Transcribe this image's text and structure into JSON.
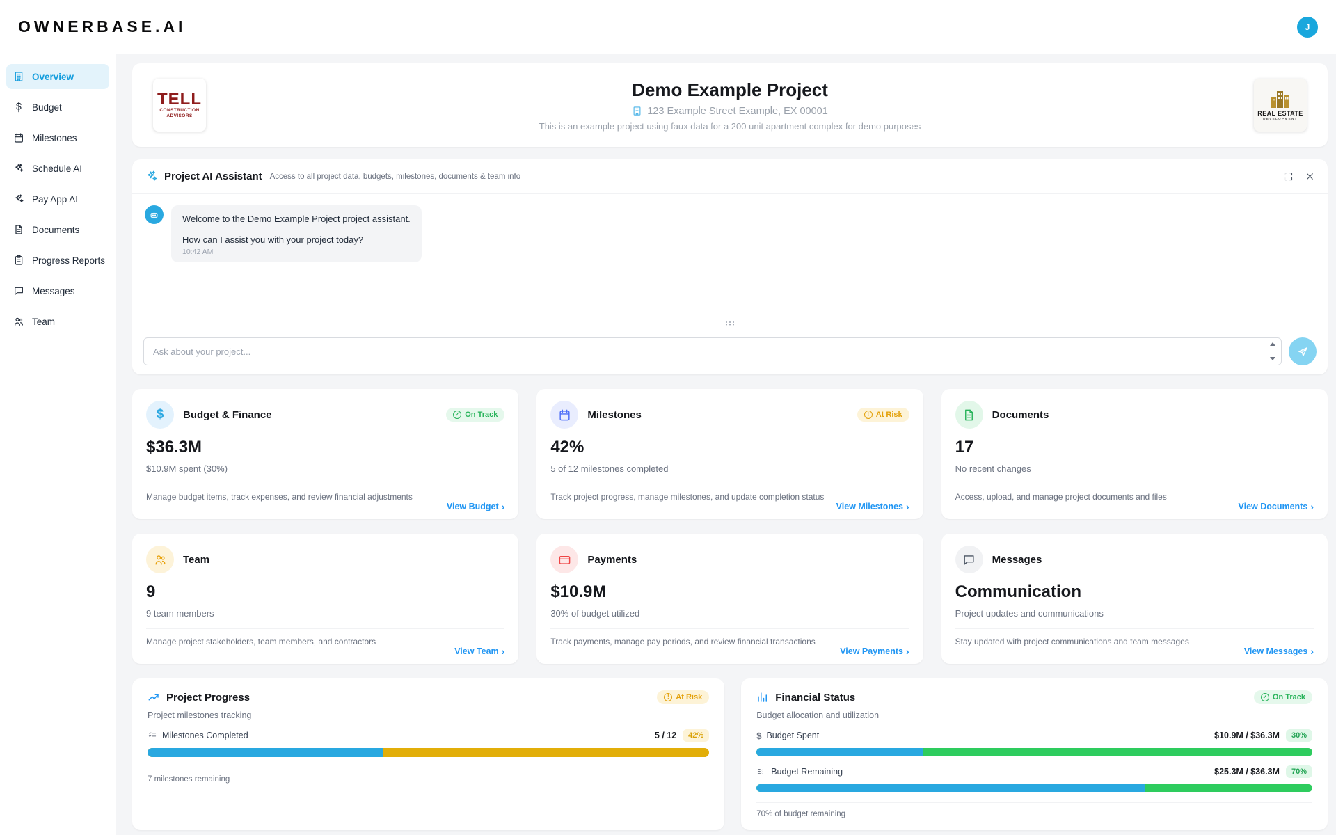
{
  "topbar": {
    "brand": "OWNERBASE.AI",
    "avatar_initial": "J"
  },
  "sidebar": {
    "items": [
      {
        "label": "Overview",
        "active": true
      },
      {
        "label": "Budget",
        "active": false
      },
      {
        "label": "Milestones",
        "active": false
      },
      {
        "label": "Schedule AI",
        "active": false
      },
      {
        "label": "Pay App AI",
        "active": false
      },
      {
        "label": "Documents",
        "active": false
      },
      {
        "label": "Progress Reports",
        "active": false
      },
      {
        "label": "Messages",
        "active": false
      },
      {
        "label": "Team",
        "active": false
      }
    ]
  },
  "header": {
    "title": "Demo Example Project",
    "address": "123 Example Street Example, EX 00001",
    "description": "This is an example project using faux data for a 200 unit apartment complex for demo purposes",
    "left_logo": {
      "line1": "TELL",
      "line2": "CONSTRUCTION",
      "line3": "ADVISORS"
    },
    "right_logo": {
      "line1": "REAL ESTATE",
      "line2": "DEVELOPMENT"
    }
  },
  "ai": {
    "title": "Project AI Assistant",
    "subtitle": "Access to all project data, budgets, milestones, documents & team info",
    "message": {
      "line1": "Welcome to the Demo Example Project project assistant.",
      "line2": "How can I assist you with your project today?",
      "time": "10:42 AM"
    },
    "input_placeholder": "Ask about your project..."
  },
  "cards": [
    {
      "title": "Budget & Finance",
      "badge": {
        "label": "On Track",
        "type": "success"
      },
      "value": "$36.3M",
      "subtitle": "$10.9M spent (30%)",
      "description": "Manage budget items, track expenses, and review financial adjustments",
      "link": "View Budget"
    },
    {
      "title": "Milestones",
      "badge": {
        "label": "At Risk",
        "type": "warn"
      },
      "value": "42%",
      "subtitle": "5 of 12 milestones completed",
      "description": "Track project progress, manage milestones, and update completion status",
      "link": "View Milestones"
    },
    {
      "title": "Documents",
      "value": "17",
      "subtitle": "No recent changes",
      "description": "Access, upload, and manage project documents and files",
      "link": "View Documents"
    },
    {
      "title": "Team",
      "value": "9",
      "subtitle": "9 team members",
      "description": "Manage project stakeholders, team members, and contractors",
      "link": "View Team"
    },
    {
      "title": "Payments",
      "value": "$10.9M",
      "subtitle": "30% of budget utilized",
      "description": "Track payments, manage pay periods, and review financial transactions",
      "link": "View Payments"
    },
    {
      "title": "Messages",
      "value": "Communication",
      "subtitle": "Project updates and communications",
      "description": "Stay updated with project communications and team messages",
      "link": "View Messages"
    }
  ],
  "progress": {
    "title": "Project Progress",
    "badge": "At Risk",
    "subtitle": "Project milestones tracking",
    "metric_label": "Milestones Completed",
    "metric_value": "5 / 12",
    "metric_pct": "42%",
    "fill": 42,
    "footer": "7 milestones remaining"
  },
  "financial": {
    "title": "Financial Status",
    "badge": "On Track",
    "subtitle": "Budget allocation and utilization",
    "rows": [
      {
        "label": "Budget Spent",
        "value": "$10.9M / $36.3M",
        "pct": "30%",
        "fill": 30
      },
      {
        "label": "Budget Remaining",
        "value": "$25.3M / $36.3M",
        "pct": "70%",
        "fill": 70
      }
    ],
    "footer": "70% of budget remaining"
  },
  "colors": {
    "accent_blue": "#29a8e0",
    "link_blue": "#2196f3",
    "success_green": "#27b35a",
    "warning_amber": "#e3a008",
    "bar_gold": "#e2ae09",
    "bar_green": "#2ecc5e",
    "brand_red": "#8f1d1d",
    "logo_gold": "#b9912f",
    "active_nav": "#149ddd"
  }
}
